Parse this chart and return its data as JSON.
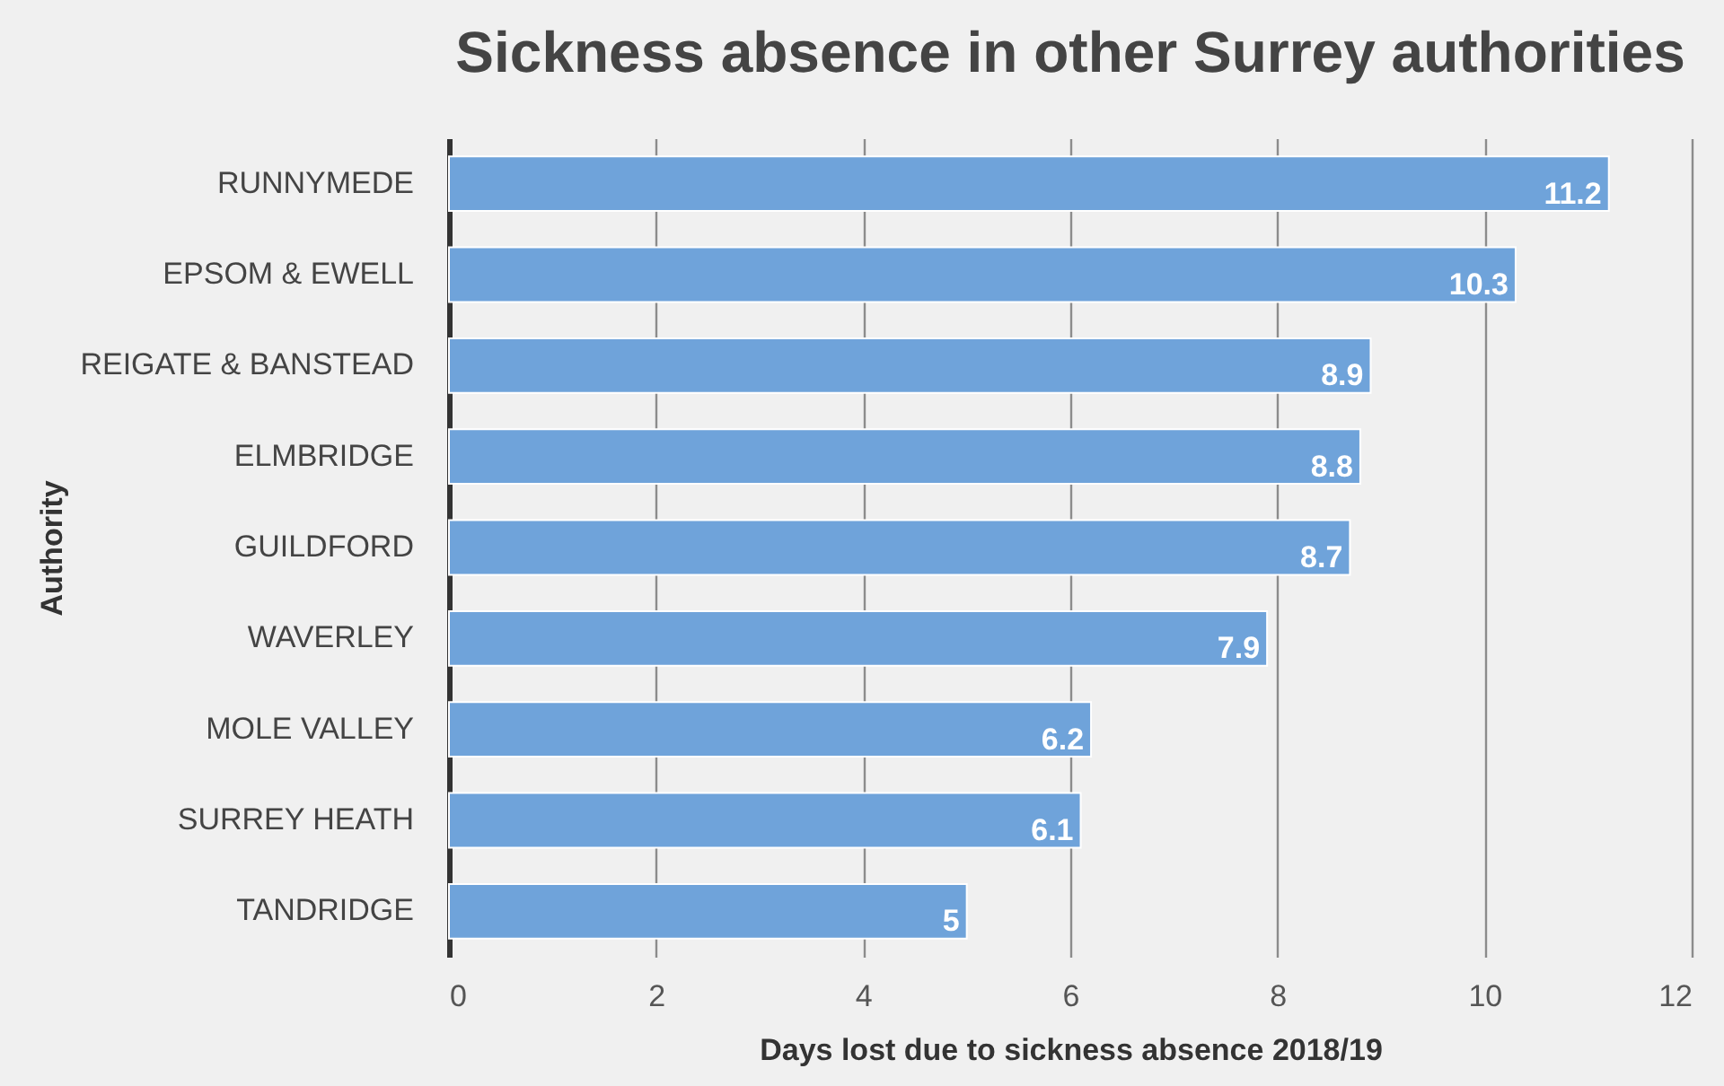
{
  "chart_data": {
    "type": "bar",
    "orientation": "horizontal",
    "title": "Sickness absence in other Surrey authorities",
    "xlabel": "Days lost due to sickness absence 2018/19",
    "ylabel": "Authority",
    "categories": [
      "RUNNYMEDE",
      "EPSOM & EWELL",
      "REIGATE & BANSTEAD",
      "ELMBRIDGE",
      "GUILDFORD",
      "WAVERLEY",
      "MOLE VALLEY",
      "SURREY HEATH",
      "TANDRIDGE"
    ],
    "values": [
      11.2,
      10.3,
      8.9,
      8.8,
      8.7,
      7.9,
      6.2,
      6.1,
      5
    ],
    "color": "#6fa3da",
    "data_labels": true,
    "grid": "x",
    "xlim": [
      0,
      12
    ],
    "xticks": [
      0,
      2,
      4,
      6,
      8,
      10,
      12
    ]
  }
}
